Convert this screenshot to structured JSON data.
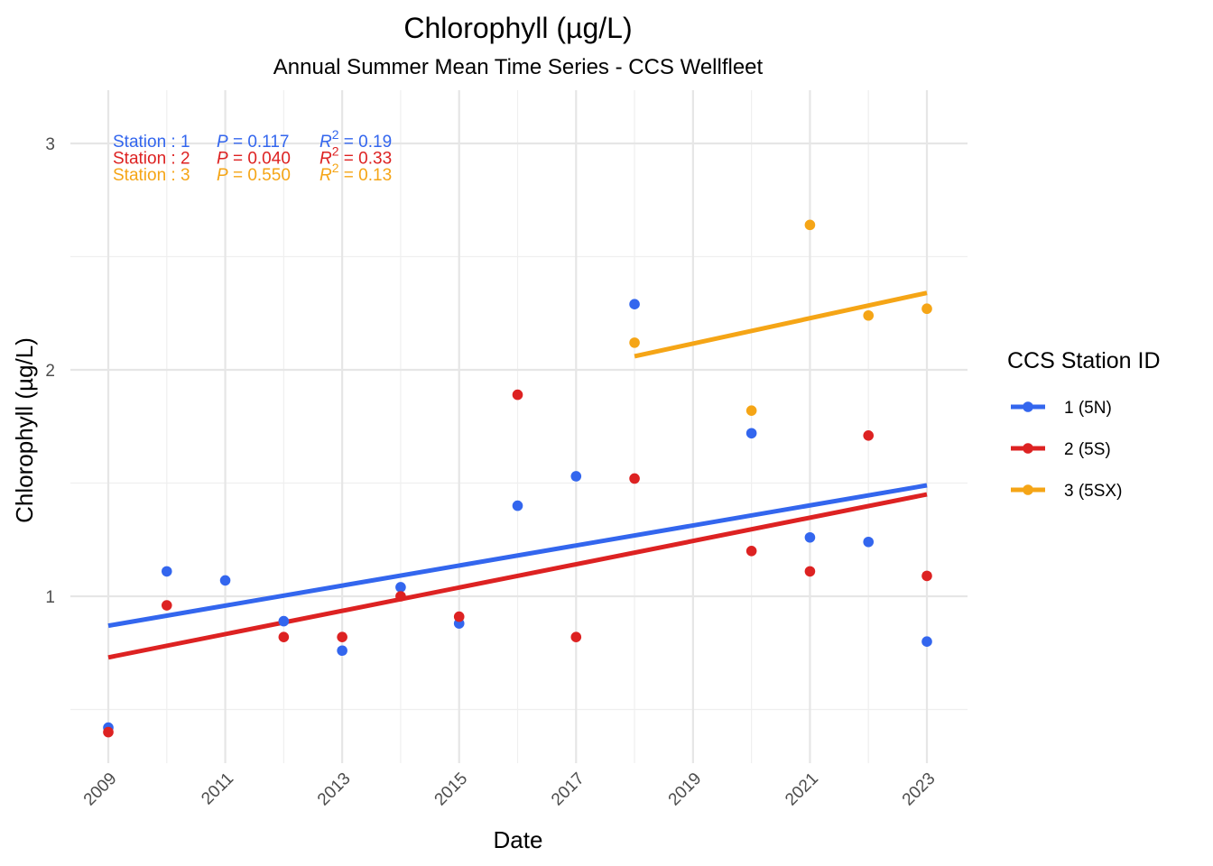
{
  "chart_data": {
    "type": "scatter",
    "title": "Chlorophyll (µg/L)",
    "subtitle": "Annual Summer Mean Time Series - CCS Wellfleet",
    "xlabel": "Date",
    "ylabel": "Chlorophyll (µg/L)",
    "xlim": [
      2008.7,
      2023.7
    ],
    "ylim": [
      0.28,
      3.2
    ],
    "x_ticks": [
      "2009",
      "2011",
      "2013",
      "2015",
      "2017",
      "2019",
      "2021",
      "2023"
    ],
    "y_ticks": [
      "1",
      "2",
      "3"
    ],
    "grid": true,
    "legend": {
      "title": "CCS Station ID",
      "placement": "right"
    },
    "series": [
      {
        "name": "1 (5N)",
        "color": "#3366ee",
        "x": [
          2009,
          2010,
          2011,
          2012,
          2013,
          2014,
          2015,
          2016,
          2017,
          2018,
          2020,
          2021,
          2022,
          2023
        ],
        "values": [
          0.42,
          1.11,
          1.07,
          0.89,
          0.76,
          1.04,
          0.88,
          1.4,
          1.53,
          2.29,
          1.72,
          1.26,
          1.24,
          0.8
        ],
        "trend": {
          "x": [
            2009,
            2023
          ],
          "y": [
            0.87,
            1.49
          ]
        },
        "stat": {
          "station": "1",
          "p": "0.117",
          "r2": "0.19"
        }
      },
      {
        "name": "2 (5S)",
        "color": "#dd2222",
        "x": [
          2009,
          2010,
          2012,
          2013,
          2014,
          2015,
          2016,
          2017,
          2018,
          2020,
          2021,
          2022,
          2023
        ],
        "values": [
          0.4,
          0.96,
          0.82,
          0.82,
          1.0,
          0.91,
          1.89,
          0.82,
          1.52,
          1.2,
          1.11,
          1.71,
          1.09
        ],
        "trend": {
          "x": [
            2009,
            2023
          ],
          "y": [
            0.73,
            1.45
          ]
        },
        "stat": {
          "station": "2",
          "p": "0.040",
          "r2": "0.33"
        }
      },
      {
        "name": "3 (5SX)",
        "color": "#f5a516",
        "x": [
          2018,
          2020,
          2021,
          2022,
          2023
        ],
        "values": [
          2.12,
          1.82,
          2.64,
          2.24,
          2.27
        ],
        "trend": {
          "x": [
            2018,
            2023
          ],
          "y": [
            2.06,
            2.34
          ]
        },
        "stat": {
          "station": "3",
          "p": "0.550",
          "r2": "0.13"
        }
      }
    ]
  },
  "stats_labels": {
    "station_prefix": "Station",
    "separator": ":",
    "p_symbol": "P",
    "r_symbol": "R",
    "r_exponent": "2",
    "equals": "="
  }
}
